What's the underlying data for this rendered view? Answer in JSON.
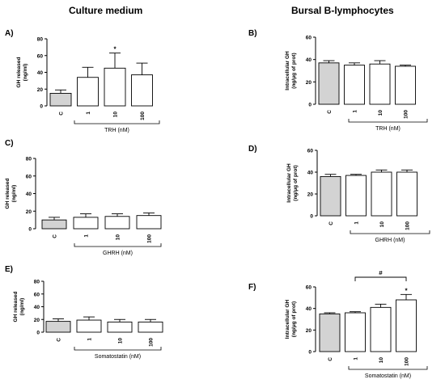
{
  "headers": {
    "left": "Culture medium",
    "right": "Bursal B-lymphocytes"
  },
  "chart_data": [
    {
      "panel": "A)",
      "type": "bar",
      "categories": [
        "C",
        "1",
        "10",
        "100"
      ],
      "values": [
        15,
        34,
        45,
        37
      ],
      "errors": [
        4,
        12,
        18,
        14
      ],
      "ylabel": [
        "GH released",
        "(ng/ml)"
      ],
      "yticks": [
        0,
        20,
        40,
        60,
        80
      ],
      "ylim": [
        0,
        80
      ],
      "group_label": "TRH (nM)",
      "annotations": [
        {
          "index": 2,
          "text": "*"
        }
      ]
    },
    {
      "panel": "B)",
      "type": "bar",
      "categories": [
        "C",
        "1",
        "10",
        "100"
      ],
      "values": [
        37,
        35,
        36,
        34
      ],
      "errors": [
        2,
        2,
        3,
        1
      ],
      "ylabel": [
        "Intracellular GH",
        "(ng/μg of prot)"
      ],
      "yticks": [
        0,
        20,
        40,
        60
      ],
      "ylim": [
        0,
        60
      ],
      "group_label": "TRH (nM)",
      "annotations": []
    },
    {
      "panel": "C)",
      "type": "bar",
      "categories": [
        "C",
        "1",
        "10",
        "100"
      ],
      "values": [
        10,
        13,
        14,
        15
      ],
      "errors": [
        3,
        4,
        3,
        3
      ],
      "ylabel": [
        "GH released",
        "(ng/ml)"
      ],
      "yticks": [
        0,
        20,
        40,
        60,
        80
      ],
      "ylim": [
        0,
        80
      ],
      "group_label": "GHRH (nM)",
      "annotations": []
    },
    {
      "panel": "D)",
      "type": "bar",
      "categories": [
        "C",
        "1",
        "10",
        "100"
      ],
      "values": [
        36,
        37,
        40,
        40
      ],
      "errors": [
        2,
        1,
        2,
        2
      ],
      "ylabel": [
        "Intracellular GH",
        "(ng/μg of prot)"
      ],
      "yticks": [
        0,
        20,
        40,
        60
      ],
      "ylim": [
        0,
        60
      ],
      "group_label": "GHRH (nM)",
      "annotations": []
    },
    {
      "panel": "E)",
      "type": "bar",
      "categories": [
        "C",
        "1",
        "10",
        "100"
      ],
      "values": [
        17,
        19,
        16,
        16
      ],
      "errors": [
        4,
        5,
        4,
        4
      ],
      "ylabel": [
        "GH released",
        "(ng/ml)"
      ],
      "yticks": [
        0,
        20,
        40,
        60,
        80
      ],
      "ylim": [
        0,
        80
      ],
      "group_label": "Somatostatin (nM)",
      "annotations": []
    },
    {
      "panel": "F)",
      "type": "bar",
      "categories": [
        "C",
        "1",
        "10",
        "100"
      ],
      "values": [
        35,
        36,
        41,
        48
      ],
      "errors": [
        1,
        1,
        3,
        5
      ],
      "ylabel": [
        "Intracellular GH",
        "(ng/μg of prot)"
      ],
      "yticks": [
        0,
        20,
        40,
        60
      ],
      "ylim": [
        0,
        60
      ],
      "group_label": "Somatostatin (nM)",
      "annotations": [
        {
          "index": 3,
          "text": "*"
        }
      ],
      "bracket": {
        "from": 1,
        "to": 3,
        "text": "#"
      }
    }
  ],
  "colors": {
    "control_fill": "#d3d3d3",
    "treatment_fill": "#ffffff",
    "stroke": "#000000"
  }
}
